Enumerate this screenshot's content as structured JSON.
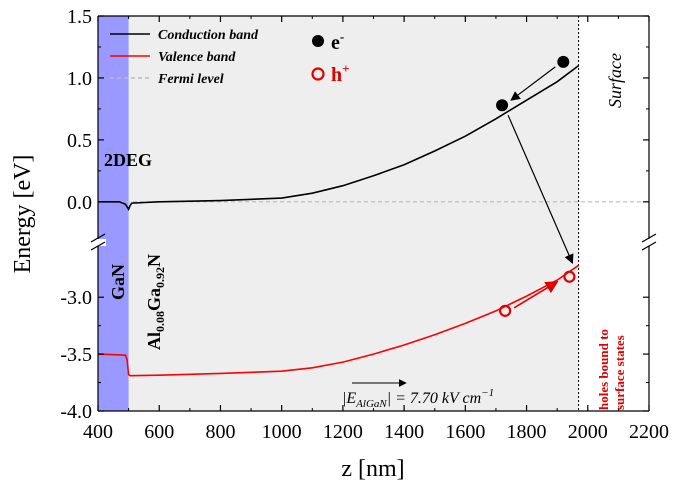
{
  "chart_data": {
    "type": "line",
    "xlabel": "z [nm]",
    "ylabel": "Energy [eV]",
    "xlim": [
      400,
      2200
    ],
    "x_ticks": [
      "400",
      "600",
      "800",
      "1000",
      "1200",
      "1400",
      "1600",
      "1800",
      "2000",
      "2200"
    ],
    "y_ticks_upper": [
      "0.0",
      "0.5",
      "1.0",
      "1.5"
    ],
    "y_ticks_lower": [
      "-4.0",
      "-3.5",
      "-3.0"
    ],
    "ylim_upper": [
      -0.3,
      1.5
    ],
    "ylim_lower": [
      -4.0,
      -2.55
    ],
    "broken_y_axis": true,
    "legend_position": "top-left",
    "regions": {
      "gan": {
        "x": [
          400,
          500
        ],
        "color": "#9999ff"
      },
      "algan": {
        "x": [
          500,
          1970
        ],
        "color": "#eeeeee"
      },
      "surface_x": 1970
    },
    "series": [
      {
        "name": "Conduction band",
        "color": "#000000",
        "style": "solid",
        "x": [
          400,
          470,
          490,
          500,
          505,
          510,
          600,
          800,
          1000,
          1100,
          1200,
          1300,
          1400,
          1500,
          1600,
          1700,
          1800,
          1900,
          1970
        ],
        "y": [
          0.0,
          0.0,
          -0.02,
          -0.06,
          -0.03,
          -0.01,
          0.0,
          0.01,
          0.03,
          0.07,
          0.13,
          0.21,
          0.3,
          0.41,
          0.53,
          0.67,
          0.82,
          0.97,
          1.1
        ]
      },
      {
        "name": "Valence band",
        "color": "#ff0000",
        "style": "solid",
        "x": [
          400,
          490,
          495,
          500,
          505,
          600,
          800,
          1000,
          1100,
          1200,
          1300,
          1400,
          1500,
          1600,
          1700,
          1800,
          1900,
          1970
        ],
        "y": [
          -3.5,
          -3.51,
          -3.55,
          -3.68,
          -3.69,
          -3.685,
          -3.67,
          -3.65,
          -3.62,
          -3.57,
          -3.5,
          -3.42,
          -3.33,
          -3.23,
          -3.12,
          -2.99,
          -2.85,
          -2.72
        ]
      },
      {
        "name": "Fermi level",
        "color": "#bbbbbb",
        "style": "dashed",
        "x": [
          400,
          2200
        ],
        "y": [
          0.0,
          0.0
        ]
      }
    ],
    "markers": {
      "electrons": [
        {
          "x": 1720,
          "y": 0.78
        },
        {
          "x": 1920,
          "y": 1.13
        }
      ],
      "holes": [
        {
          "x": 1730,
          "y": -3.12
        },
        {
          "x": 1940,
          "y": -2.82
        }
      ]
    },
    "annotations": {
      "label_2deg": "2DEG",
      "label_gan": "GaN",
      "algan_base1": "Al",
      "algan_sub1": "0.08",
      "algan_base2": "Ga",
      "algan_sub2": "0.92",
      "algan_base3": "N",
      "surface": "Surface",
      "electron_symbol": "e",
      "electron_sup": "-",
      "hole_symbol": "h",
      "hole_sup": "+",
      "holes_note_line1": "holes bound to",
      "holes_note_line2": "surface states",
      "field_label": "|E",
      "field_sub": "AlGaN",
      "field_value": "| = 7.70 kV cm",
      "field_unit_sup": "−1"
    },
    "colors": {
      "electron": "#000000",
      "hole": "#e00000",
      "holes_note": "#e00000"
    }
  }
}
